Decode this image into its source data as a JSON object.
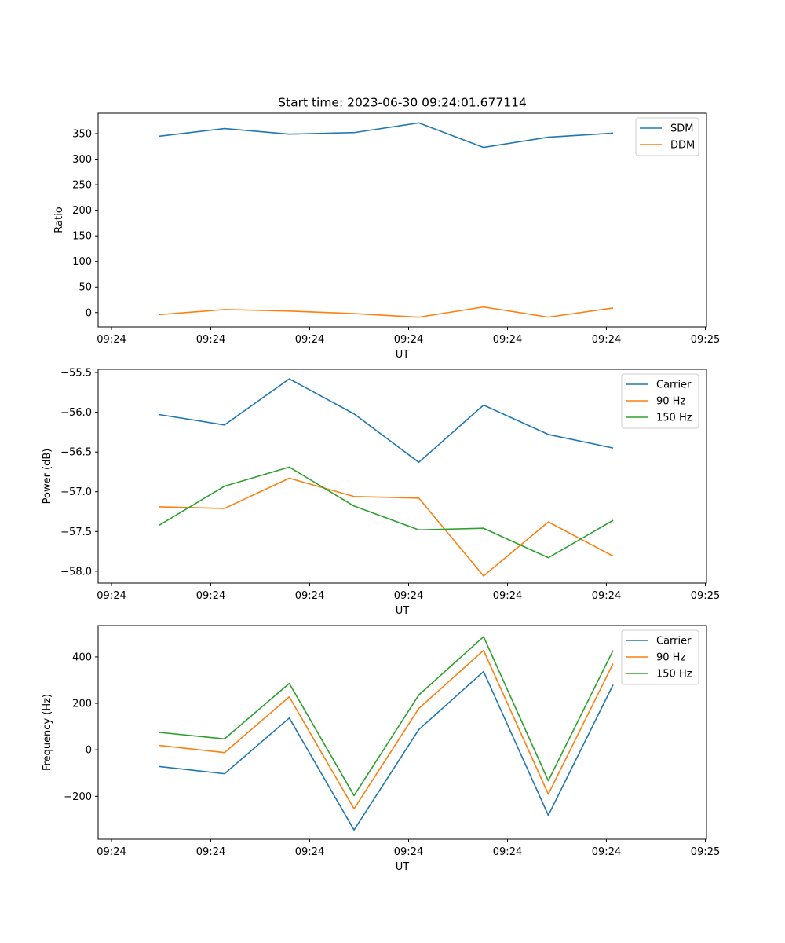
{
  "figure": {
    "title": "Start time: 2023-06-30 09:24:01.677114"
  },
  "chart_data": [
    {
      "type": "line",
      "title": "Start time: 2023-06-30 09:24:01.677114",
      "xlabel": "UT",
      "ylabel": "Ratio",
      "x_tick_labels": [
        "09:24",
        "09:24",
        "09:24",
        "09:24",
        "09:24",
        "09:24",
        "09:25"
      ],
      "y_ticks": [
        0,
        50,
        100,
        150,
        200,
        250,
        300,
        350
      ],
      "ylim": [
        -28,
        390
      ],
      "x": [
        1,
        2,
        3,
        4,
        5,
        6,
        7,
        8
      ],
      "series": [
        {
          "name": "SDM",
          "color": "#1f77b4",
          "values": [
            345,
            360,
            349,
            352,
            371,
            323,
            343,
            351
          ]
        },
        {
          "name": "DDM",
          "color": "#ff7f0e",
          "values": [
            -4,
            6,
            3,
            -2,
            -9,
            11,
            -9,
            9
          ]
        }
      ],
      "legend": "top-right",
      "grid": false
    },
    {
      "type": "line",
      "title": "",
      "xlabel": "UT",
      "ylabel": "Power (dB)",
      "x_tick_labels": [
        "09:24",
        "09:24",
        "09:24",
        "09:24",
        "09:24",
        "09:24",
        "09:25"
      ],
      "y_ticks": [
        -58.0,
        -57.5,
        -57.0,
        -56.5,
        -56.0,
        -55.5
      ],
      "y_tick_labels": [
        "−58.0",
        "−57.5",
        "−57.0",
        "−56.5",
        "−56.0",
        "−55.5"
      ],
      "ylim": [
        -58.15,
        -55.46
      ],
      "x": [
        1,
        2,
        3,
        4,
        5,
        6,
        7,
        8
      ],
      "series": [
        {
          "name": "Carrier",
          "color": "#1f77b4",
          "values": [
            -56.03,
            -56.16,
            -55.58,
            -56.02,
            -56.63,
            -55.91,
            -56.28,
            -56.45
          ]
        },
        {
          "name": "90 Hz",
          "color": "#ff7f0e",
          "values": [
            -57.19,
            -57.21,
            -56.83,
            -57.06,
            -57.08,
            -58.06,
            -57.38,
            -57.81
          ]
        },
        {
          "name": "150 Hz",
          "color": "#2ca02c",
          "values": [
            -57.42,
            -56.93,
            -56.69,
            -57.18,
            -57.48,
            -57.46,
            -57.83,
            -57.36
          ]
        }
      ],
      "legend": "top-right",
      "grid": false
    },
    {
      "type": "line",
      "title": "",
      "xlabel": "UT",
      "ylabel": "Frequency (Hz)",
      "x_tick_labels": [
        "09:24",
        "09:24",
        "09:24",
        "09:24",
        "09:24",
        "09:24",
        "09:25"
      ],
      "y_ticks": [
        -200,
        0,
        200,
        400
      ],
      "y_tick_labels": [
        "−200",
        "0",
        "200",
        "400"
      ],
      "ylim": [
        -385,
        535
      ],
      "x": [
        1,
        2,
        3,
        4,
        5,
        6,
        7,
        8
      ],
      "series": [
        {
          "name": "Carrier",
          "color": "#1f77b4",
          "values": [
            -72,
            -103,
            137,
            -345,
            87,
            337,
            -282,
            280
          ]
        },
        {
          "name": "90 Hz",
          "color": "#ff7f0e",
          "values": [
            19,
            -12,
            228,
            -254,
            178,
            428,
            -191,
            371
          ]
        },
        {
          "name": "150 Hz",
          "color": "#2ca02c",
          "values": [
            75,
            47,
            286,
            -197,
            236,
            487,
            -133,
            428
          ]
        }
      ],
      "legend": "top-right",
      "grid": false
    }
  ]
}
